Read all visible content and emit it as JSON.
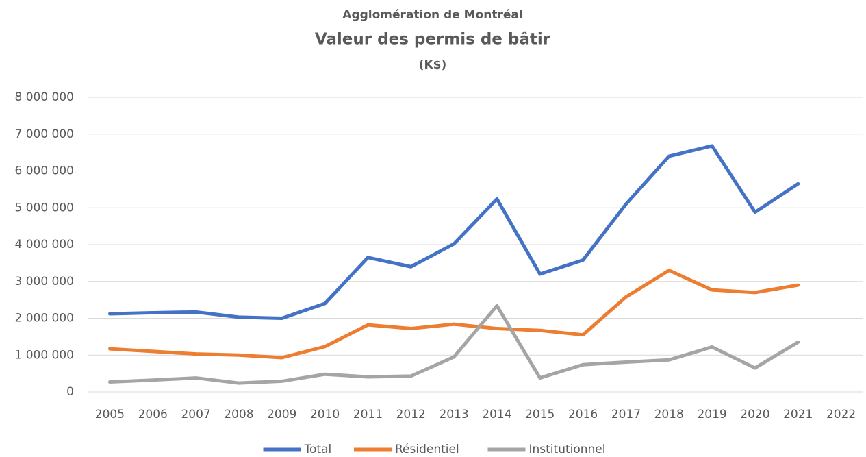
{
  "chart_data": {
    "type": "line",
    "title": "Agglomération de Montréal",
    "subtitle": "Valeur des permis de bâtir",
    "unit_label": "(K$)",
    "categories": [
      "2005",
      "2006",
      "2007",
      "2008",
      "2009",
      "2010",
      "2011",
      "2012",
      "2013",
      "2014",
      "2015",
      "2016",
      "2017",
      "2018",
      "2019",
      "2020",
      "2021",
      "2022"
    ],
    "series": [
      {
        "name": "Total",
        "color": "#4472c4",
        "values": [
          2120000,
          2150000,
          2170000,
          2030000,
          2000000,
          2400000,
          3650000,
          3400000,
          4020000,
          5240000,
          3200000,
          3580000,
          5100000,
          6400000,
          6680000,
          4880000,
          5650000,
          null
        ]
      },
      {
        "name": "Résidentiel",
        "color": "#ed7d31",
        "values": [
          1170000,
          1100000,
          1030000,
          1000000,
          930000,
          1230000,
          1820000,
          1720000,
          1840000,
          1720000,
          1670000,
          1550000,
          2580000,
          3300000,
          2770000,
          2700000,
          2900000,
          null
        ]
      },
      {
        "name": "Institutionnel",
        "color": "#a5a5a5",
        "values": [
          270000,
          320000,
          380000,
          240000,
          290000,
          480000,
          410000,
          430000,
          950000,
          2340000,
          380000,
          740000,
          810000,
          870000,
          1220000,
          650000,
          1350000,
          null
        ]
      }
    ],
    "ylim": [
      0,
      8000000
    ],
    "yticks": [
      0,
      {
        "value": 1000000,
        "label": "1 000 000"
      },
      {
        "value": 2000000,
        "label": "2 000 000"
      },
      {
        "value": 3000000,
        "label": "3 000 000"
      },
      {
        "value": 4000000,
        "label": "4 000 000"
      },
      {
        "value": 5000000,
        "label": "5 000 000"
      },
      {
        "value": 6000000,
        "label": "6 000 000"
      },
      {
        "value": 7000000,
        "label": "7 000 000"
      },
      {
        "value": 8000000,
        "label": "8 000 000"
      }
    ],
    "grid": true,
    "legend": "bottom"
  }
}
